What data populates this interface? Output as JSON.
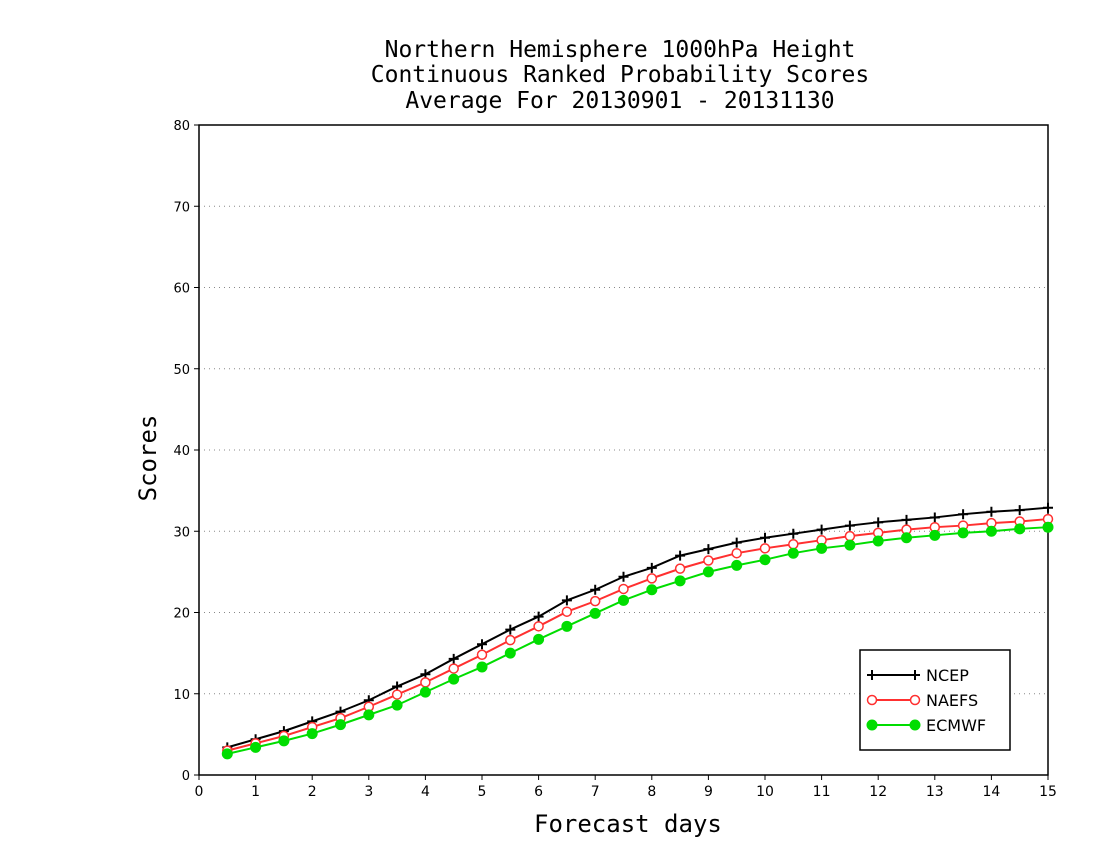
{
  "chart_data": {
    "type": "line",
    "title": [
      "Northern Hemisphere 1000hPa Height",
      "Continuous Ranked Probability Scores",
      "Average For 20130901 - 20131130"
    ],
    "xlabel": "Forecast days",
    "ylabel": "Scores",
    "xlim": [
      0,
      15
    ],
    "ylim": [
      0,
      80
    ],
    "xticks": [
      0,
      1,
      2,
      3,
      4,
      5,
      6,
      7,
      8,
      9,
      10,
      11,
      12,
      13,
      14,
      15
    ],
    "yticks": [
      0,
      10,
      20,
      30,
      40,
      50,
      60,
      70,
      80
    ],
    "grid": true,
    "legend_position": "bottom-right",
    "x": [
      0.5,
      1,
      1.5,
      2,
      2.5,
      3,
      3.5,
      4,
      4.5,
      5,
      5.5,
      6,
      6.5,
      7,
      7.5,
      8,
      8.5,
      9,
      9.5,
      10,
      10.5,
      11,
      11.5,
      12,
      12.5,
      13,
      13.5,
      14,
      14.5,
      15
    ],
    "series": [
      {
        "name": "NCEP",
        "color": "#000000",
        "marker": "plus",
        "values": [
          3.4,
          4.4,
          5.4,
          6.6,
          7.8,
          9.2,
          10.9,
          12.4,
          14.3,
          16.1,
          17.9,
          19.5,
          21.5,
          22.8,
          24.4,
          25.5,
          27.0,
          27.8,
          28.6,
          29.2,
          29.7,
          30.2,
          30.7,
          31.1,
          31.4,
          31.7,
          32.1,
          32.4,
          32.6,
          32.9
        ]
      },
      {
        "name": "NAEFS",
        "color": "#ff3030",
        "marker": "open-circle",
        "values": [
          3.0,
          3.9,
          4.8,
          5.9,
          7.0,
          8.4,
          9.9,
          11.4,
          13.1,
          14.8,
          16.6,
          18.3,
          20.1,
          21.4,
          22.9,
          24.2,
          25.4,
          26.4,
          27.3,
          27.9,
          28.4,
          28.9,
          29.4,
          29.8,
          30.2,
          30.5,
          30.7,
          31.0,
          31.2,
          31.5
        ]
      },
      {
        "name": "ECMWF",
        "color": "#00dd00",
        "marker": "filled-circle",
        "values": [
          2.6,
          3.4,
          4.2,
          5.1,
          6.2,
          7.4,
          8.6,
          10.2,
          11.8,
          13.3,
          15.0,
          16.7,
          18.3,
          19.9,
          21.5,
          22.8,
          23.9,
          25.0,
          25.8,
          26.5,
          27.3,
          27.9,
          28.3,
          28.8,
          29.2,
          29.5,
          29.8,
          30.0,
          30.3,
          30.5
        ]
      }
    ]
  }
}
